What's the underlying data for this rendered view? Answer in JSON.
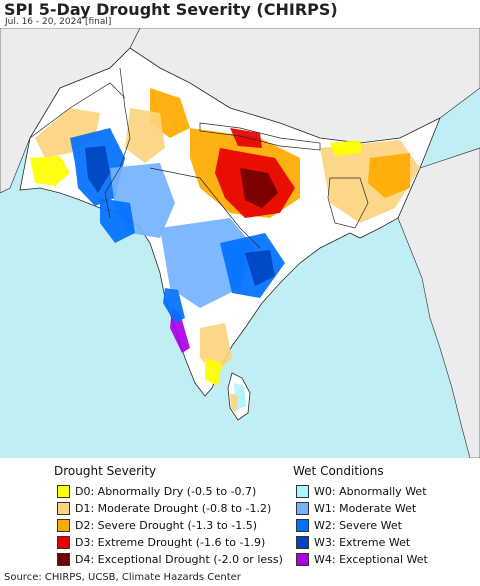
{
  "map": {
    "title": "SPI 5-Day Drought Severity (CHIRPS)",
    "subtitle": "Jul. 16 - 20, 2024 [final]",
    "colors": {
      "ocean": "#bfeff3",
      "land_outside": "#ecebed",
      "border": "#2a2a2a",
      "neutral_land": "#ffffff"
    }
  },
  "legend": {
    "drought_heading": "Drought Severity",
    "wet_heading": "Wet Conditions",
    "drought_items": [
      {
        "code": "D0",
        "label": "D0: Abnormally Dry (-0.5 to -0.7)",
        "color": "#ffff00"
      },
      {
        "code": "D1",
        "label": "D1: Moderate Drought (-0.8 to -1.2)",
        "color": "#fcd37f"
      },
      {
        "code": "D2",
        "label": "D2: Severe Drought (-1.3 to -1.5)",
        "color": "#ffaa00"
      },
      {
        "code": "D3",
        "label": "D3: Extreme Drought (-1.6 to -1.9)",
        "color": "#e60000"
      },
      {
        "code": "D4",
        "label": "D4: Exceptional Drought (-2.0 or less)",
        "color": "#730000"
      }
    ],
    "wet_items": [
      {
        "code": "W0",
        "label": "W0: Abnormally Wet",
        "color": "#aaf5ff"
      },
      {
        "code": "W1",
        "label": "W1: Moderate Wet",
        "color": "#73b2ff"
      },
      {
        "code": "W2",
        "label": "W2: Severe Wet",
        "color": "#0070ff"
      },
      {
        "code": "W3",
        "label": "W3: Extreme Wet",
        "color": "#0044c0"
      },
      {
        "code": "W4",
        "label": "W4: Exceptional Wet",
        "color": "#a900e6"
      }
    ]
  },
  "footer": {
    "source": "Source: CHIRPS, UCSB, Climate Hazards Center"
  }
}
